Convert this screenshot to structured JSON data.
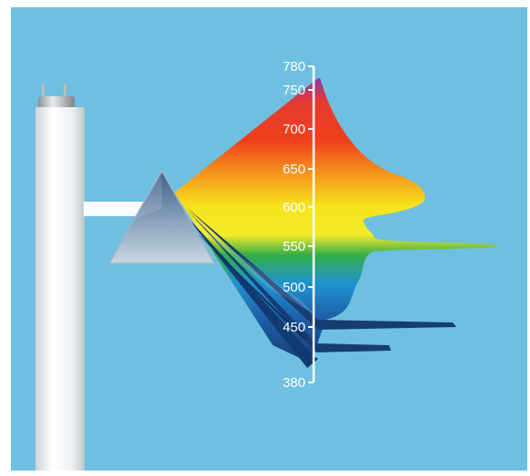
{
  "figure": {
    "background": "#6fbfe0",
    "frame_color": "#ffffff"
  },
  "scale": {
    "color": "#ffffff",
    "ticks": [
      {
        "value": 780,
        "label": "780"
      },
      {
        "value": 750,
        "label": "750"
      },
      {
        "value": 700,
        "label": "700"
      },
      {
        "value": 650,
        "label": "650"
      },
      {
        "value": 600,
        "label": "600"
      },
      {
        "value": 550,
        "label": "550"
      },
      {
        "value": 500,
        "label": "500"
      },
      {
        "value": 450,
        "label": "450"
      },
      {
        "value": 380,
        "label": "380"
      }
    ]
  },
  "components": {
    "lamp": "fluorescent-tube",
    "prism": "glass-prism",
    "beam": "white-light-beam"
  },
  "spectrum_colors": {
    "violet": "#7a3a9a",
    "red": "#e8261c",
    "orange": "#f48a1c",
    "yellow": "#f5e51a",
    "green": "#2aa84a",
    "blue": "#1d86c9",
    "indigo": "#1f4a8c",
    "dark_blue": "#173c74"
  }
}
